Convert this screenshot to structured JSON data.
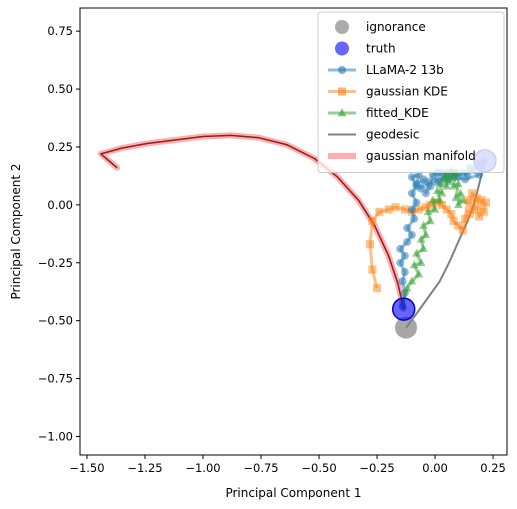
{
  "chart_data": {
    "type": "line",
    "title": "",
    "xlabel": "Principal Component 1",
    "ylabel": "Principal Component 2",
    "xlim": [
      -1.53,
      0.31
    ],
    "ylim": [
      -1.08,
      0.85
    ],
    "xticks": [
      -1.5,
      -1.25,
      -1.0,
      -0.75,
      -0.5,
      -0.25,
      0.0,
      0.25
    ],
    "xtick_labels": [
      "−1.50",
      "−1.25",
      "−1.00",
      "−0.75",
      "−0.50",
      "−0.25",
      "0.00",
      "0.25"
    ],
    "yticks": [
      0.75,
      0.5,
      0.25,
      0.0,
      -0.25,
      -0.5,
      -0.75,
      -1.0
    ],
    "ytick_labels": [
      "0.75",
      "0.50",
      "0.25",
      "0.00",
      "−0.25",
      "−0.50",
      "−0.75",
      "−1.00"
    ],
    "grid": false,
    "legend_position": "top-right",
    "legend": [
      {
        "label": "ignorance",
        "kind": "circle",
        "color": "#808080"
      },
      {
        "label": "truth",
        "kind": "circle",
        "color": "#0000ff"
      },
      {
        "label": "LLaMA-2 13b",
        "kind": "line-circle",
        "color": "#1f77b4"
      },
      {
        "label": "gaussian KDE",
        "kind": "line-square",
        "color": "#ff7f0e"
      },
      {
        "label": "fitted_KDE",
        "kind": "line-triangle",
        "color": "#2ca02c"
      },
      {
        "label": "geodesic",
        "kind": "line",
        "color": "#808080"
      },
      {
        "label": "gaussian manifold",
        "kind": "thick-line",
        "color": "#ff9999"
      }
    ],
    "series": [
      {
        "name": "ignorance",
        "kind": "point",
        "color": "#808080",
        "points": [
          [
            -0.125,
            -0.53
          ]
        ]
      },
      {
        "name": "truth",
        "kind": "point",
        "color": "#0000ff",
        "points": [
          [
            -0.135,
            -0.45
          ],
          [
            0.215,
            0.19
          ]
        ]
      },
      {
        "name": "LLaMA-2 13b",
        "kind": "line-circle",
        "color": "#1f77b4",
        "points": [
          [
            -0.14,
            -0.44
          ],
          [
            -0.13,
            -0.38
          ],
          [
            -0.14,
            -0.33
          ],
          [
            -0.13,
            -0.29
          ],
          [
            -0.15,
            -0.25
          ],
          [
            -0.13,
            -0.22
          ],
          [
            -0.15,
            -0.19
          ],
          [
            -0.12,
            -0.16
          ],
          [
            -0.1,
            -0.13
          ],
          [
            -0.12,
            -0.1
          ],
          [
            -0.09,
            -0.06
          ],
          [
            -0.1,
            -0.02
          ],
          [
            -0.08,
            0.01
          ],
          [
            -0.1,
            0.05
          ],
          [
            -0.08,
            0.08
          ],
          [
            -0.1,
            0.12
          ],
          [
            -0.07,
            0.13
          ],
          [
            -0.08,
            0.09
          ],
          [
            -0.05,
            0.11
          ],
          [
            -0.06,
            0.07
          ],
          [
            -0.03,
            0.1
          ],
          [
            -0.04,
            0.05
          ],
          [
            -0.02,
            0.08
          ],
          [
            -0.01,
            0.13
          ],
          [
            0.01,
            0.14
          ],
          [
            0.0,
            0.1
          ],
          [
            0.03,
            0.14
          ],
          [
            0.02,
            0.1
          ],
          [
            0.05,
            0.14
          ],
          [
            0.04,
            0.11
          ],
          [
            0.07,
            0.14
          ],
          [
            0.06,
            0.11
          ],
          [
            0.09,
            0.14
          ],
          [
            0.1,
            0.12
          ],
          [
            0.12,
            0.14
          ],
          [
            0.14,
            0.13
          ],
          [
            0.15,
            0.16
          ],
          [
            0.17,
            0.15
          ],
          [
            0.18,
            0.18
          ],
          [
            0.2,
            0.17
          ],
          [
            0.21,
            0.19
          ],
          [
            0.19,
            0.13
          ],
          [
            0.13,
            0.11
          ],
          [
            0.08,
            0.12
          ]
        ]
      },
      {
        "name": "gaussian KDE",
        "kind": "line-square",
        "color": "#ff7f0e",
        "points": [
          [
            -0.25,
            -0.36
          ],
          [
            -0.27,
            -0.28
          ],
          [
            -0.28,
            -0.17
          ],
          [
            -0.27,
            -0.07
          ],
          [
            -0.24,
            -0.03
          ],
          [
            -0.2,
            -0.02
          ],
          [
            -0.17,
            -0.01
          ],
          [
            -0.13,
            -0.02
          ],
          [
            -0.1,
            -0.03
          ],
          [
            -0.07,
            -0.02
          ],
          [
            -0.04,
            -0.01
          ],
          [
            -0.02,
            0.0
          ],
          [
            0.01,
            0.01
          ],
          [
            0.03,
            0.0
          ],
          [
            0.05,
            -0.02
          ],
          [
            0.07,
            -0.04
          ],
          [
            0.08,
            -0.07
          ],
          [
            0.1,
            -0.09
          ],
          [
            0.12,
            -0.11
          ],
          [
            0.13,
            -0.06
          ],
          [
            0.14,
            0.02
          ],
          [
            0.15,
            -0.04
          ],
          [
            0.16,
            0.05
          ],
          [
            0.17,
            -0.02
          ],
          [
            0.18,
            0.03
          ],
          [
            0.19,
            -0.05
          ],
          [
            0.2,
            0.02
          ],
          [
            0.21,
            -0.03
          ],
          [
            0.22,
            0.01
          ]
        ]
      },
      {
        "name": "fitted_KDE",
        "kind": "line-triangle",
        "color": "#2ca02c",
        "points": [
          [
            -0.14,
            -0.43
          ],
          [
            -0.12,
            -0.36
          ],
          [
            -0.1,
            -0.33
          ],
          [
            -0.07,
            -0.3
          ],
          [
            -0.09,
            -0.26
          ],
          [
            -0.06,
            -0.25
          ],
          [
            -0.08,
            -0.21
          ],
          [
            -0.05,
            -0.19
          ],
          [
            -0.06,
            -0.15
          ],
          [
            -0.04,
            -0.13
          ],
          [
            -0.05,
            -0.09
          ],
          [
            -0.02,
            -0.07
          ],
          [
            -0.03,
            -0.03
          ],
          [
            0.0,
            -0.02
          ],
          [
            -0.01,
            0.02
          ],
          [
            0.02,
            0.02
          ],
          [
            0.01,
            0.06
          ],
          [
            0.03,
            0.05
          ],
          [
            0.02,
            0.09
          ],
          [
            0.05,
            0.08
          ],
          [
            0.04,
            0.12
          ],
          [
            0.06,
            0.1
          ],
          [
            0.05,
            0.13
          ],
          [
            0.08,
            0.12
          ],
          [
            0.07,
            0.15
          ],
          [
            0.09,
            0.14
          ],
          [
            0.08,
            0.08
          ],
          [
            0.1,
            0.09
          ],
          [
            0.09,
            0.03
          ],
          [
            0.11,
            0.05
          ],
          [
            0.1,
            0.0
          ],
          [
            0.12,
            0.02
          ]
        ]
      },
      {
        "name": "geodesic",
        "kind": "line",
        "color": "#808080",
        "points": [
          [
            -0.125,
            -0.53
          ],
          [
            -0.08,
            -0.47
          ],
          [
            -0.03,
            -0.4
          ],
          [
            0.02,
            -0.33
          ],
          [
            0.06,
            -0.25
          ],
          [
            0.1,
            -0.16
          ],
          [
            0.14,
            -0.07
          ],
          [
            0.17,
            0.01
          ],
          [
            0.19,
            0.09
          ],
          [
            0.205,
            0.15
          ],
          [
            0.215,
            0.19
          ]
        ]
      },
      {
        "name": "gaussian manifold",
        "kind": "thick-line",
        "color": "#ff9999",
        "inner_color": "#8b2020",
        "points": [
          [
            -0.135,
            -0.45
          ],
          [
            -0.16,
            -0.34
          ],
          [
            -0.2,
            -0.22
          ],
          [
            -0.26,
            -0.09
          ],
          [
            -0.33,
            0.02
          ],
          [
            -0.42,
            0.12
          ],
          [
            -0.52,
            0.2
          ],
          [
            -0.64,
            0.26
          ],
          [
            -0.76,
            0.29
          ],
          [
            -0.88,
            0.3
          ],
          [
            -1.0,
            0.295
          ],
          [
            -1.12,
            0.28
          ],
          [
            -1.24,
            0.265
          ],
          [
            -1.35,
            0.245
          ],
          [
            -1.44,
            0.22
          ],
          [
            -1.37,
            0.16
          ]
        ]
      }
    ]
  }
}
